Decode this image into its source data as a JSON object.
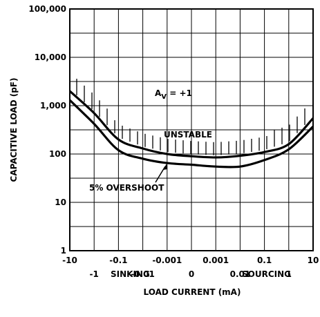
{
  "chart_data": {
    "type": "line",
    "title": "",
    "xlabel": "LOAD CURRENT (mA)",
    "ylabel": "CAPACITIVE LOAD (pF)",
    "y_scale": "log",
    "ylim": [
      1,
      100000
    ],
    "y_ticks": [
      "1",
      "10",
      "100",
      "1,000",
      "10,000",
      "100,000"
    ],
    "x_scale": "symmetric log, sinking on left, sourcing on right",
    "x_ticks_upper": [
      "-10",
      "-0.1",
      "-0.001",
      "0.001",
      "0.1",
      "10"
    ],
    "x_ticks_lower": [
      "-1",
      "-0.01",
      "0",
      "0.01",
      "1"
    ],
    "x_region_labels": [
      "SINKING",
      "SOURCING"
    ],
    "grid": true,
    "annotations": {
      "gain_main": "A",
      "gain_sub": "V",
      "gain_rest": " = +1",
      "unstable": "UNSTABLE",
      "overshoot": "5% OVERSHOOT"
    },
    "series": [
      {
        "role": "stability boundary (hatched above = unstable)",
        "x": [
          "-10",
          "-1",
          "-0.1",
          "-0.01",
          "-0.001",
          "0",
          "0.001",
          "0.01",
          "0.1",
          "1",
          "10"
        ],
        "values": [
          2000,
          700,
          200,
          130,
          100,
          90,
          85,
          92,
          110,
          160,
          550
        ]
      },
      {
        "role": "5% overshoot",
        "x": [
          "-10",
          "-1",
          "-0.1",
          "-0.01",
          "-0.001",
          "0",
          "0.001",
          "0.01",
          "0.1",
          "1",
          "10"
        ],
        "values": [
          1300,
          420,
          120,
          80,
          65,
          60,
          55,
          55,
          75,
          125,
          370
        ]
      }
    ]
  }
}
